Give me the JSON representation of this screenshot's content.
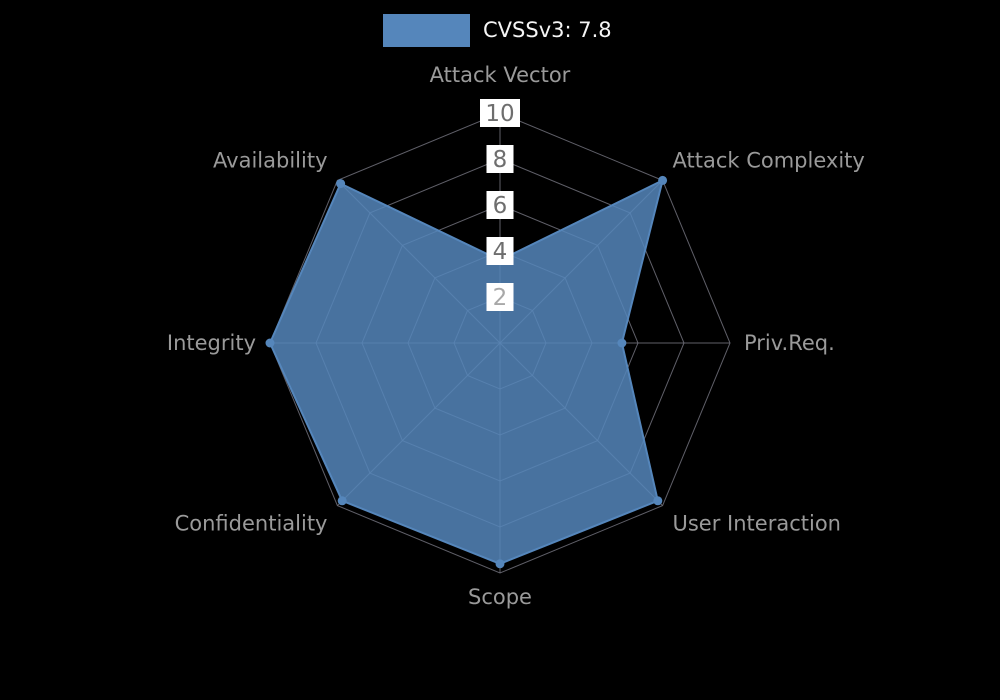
{
  "legend": {
    "series_label": "CVSSv3: 7.8"
  },
  "chart_data": {
    "type": "radar",
    "title": "CVSSv3: 7.8",
    "axes": [
      "Attack Vector",
      "Attack Complexity",
      "Priv.Req.",
      "User Interaction",
      "Scope",
      "Confidentiality",
      "Integrity",
      "Availability"
    ],
    "series": [
      {
        "name": "CVSSv3: 7.8",
        "values": [
          3.6,
          10,
          5.3,
          9.7,
          9.6,
          9.7,
          10,
          9.8
        ]
      }
    ],
    "range": [
      0,
      10
    ],
    "ticks": [
      2,
      4,
      6,
      8,
      10
    ],
    "grid": true,
    "legend_position": "top-center",
    "colors": {
      "series": "#5586bb",
      "grid": "#70707a",
      "axis_label": "#9a9a9a",
      "tick_label": "#6e6e6e",
      "tick_label_low": "#a8a8a8",
      "tick_box": "#ffffff",
      "background": "#000000",
      "legend_text": "#f5f5f5"
    }
  }
}
